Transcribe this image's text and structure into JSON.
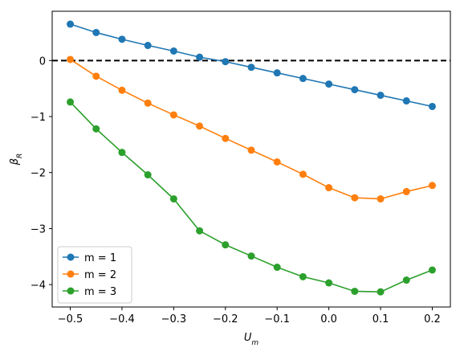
{
  "chart_data": {
    "type": "line",
    "title": "",
    "xlabel": "U",
    "xlabel_sub": "m",
    "ylabel": "β",
    "ylabel_sub": "R",
    "xlim": [
      -0.535,
      0.235
    ],
    "ylim": [
      -4.4,
      0.88
    ],
    "xticks": [
      -0.5,
      -0.4,
      -0.3,
      -0.2,
      -0.1,
      0.0,
      0.1,
      0.2
    ],
    "xtick_labels": [
      "−0.5",
      "−0.4",
      "−0.3",
      "−0.2",
      "−0.1",
      "0.0",
      "0.1",
      "0.2"
    ],
    "yticks": [
      0,
      -1,
      -2,
      -3,
      -4
    ],
    "ytick_labels": [
      "0",
      "−1",
      "−2",
      "−3",
      "−4"
    ],
    "grid": false,
    "legend_position": "lower-left",
    "reference_line": {
      "y": 0,
      "style": "dashed",
      "color": "#000000"
    },
    "x": [
      -0.5,
      -0.45,
      -0.4,
      -0.35,
      -0.3,
      -0.25,
      -0.2,
      -0.15,
      -0.1,
      -0.05,
      0.0,
      0.05,
      0.1,
      0.15,
      0.2
    ],
    "series": [
      {
        "name": "m = 1",
        "color": "#1f77b4",
        "values": [
          0.65,
          0.5,
          0.38,
          0.27,
          0.17,
          0.06,
          -0.02,
          -0.12,
          -0.22,
          -0.32,
          -0.42,
          -0.52,
          -0.62,
          -0.72,
          -0.82
        ]
      },
      {
        "name": "m = 2",
        "color": "#ff7f0e",
        "values": [
          0.02,
          -0.28,
          -0.53,
          -0.76,
          -0.97,
          -1.17,
          -1.39,
          -1.6,
          -1.81,
          -2.03,
          -2.27,
          -2.45,
          -2.47,
          -2.34,
          -2.23
        ]
      },
      {
        "name": "m = 3",
        "color": "#2ca02c",
        "values": [
          -0.74,
          -1.22,
          -1.64,
          -2.04,
          -2.47,
          -3.04,
          -3.29,
          -3.49,
          -3.69,
          -3.86,
          -3.97,
          -4.12,
          -4.13,
          -3.92,
          -3.74
        ]
      }
    ]
  }
}
